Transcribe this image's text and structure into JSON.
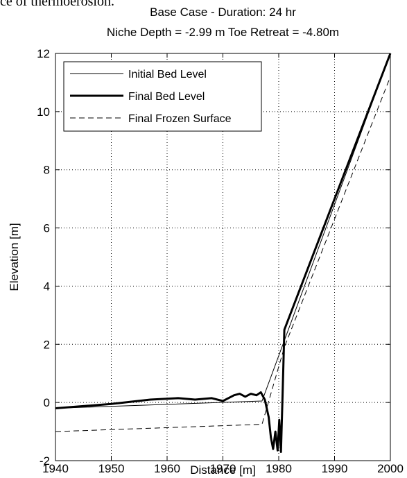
{
  "page": {
    "clipped_text": "ce of thermoerosion."
  },
  "chart_data": {
    "type": "line",
    "title": [
      "Base Case - Duration: 24 hr",
      "Niche Depth = -2.99 m  Toe Retreat = -4.80m"
    ],
    "xlabel": "Distance [m]",
    "ylabel": "Elevation [m]",
    "xlim": [
      1940,
      2000
    ],
    "ylim": [
      -2,
      12
    ],
    "xticks": [
      1940,
      1950,
      1960,
      1970,
      1980,
      1990,
      2000
    ],
    "yticks": [
      -2,
      0,
      2,
      4,
      6,
      8,
      10,
      12
    ],
    "grid": true,
    "legend_position": "top-left",
    "series": [
      {
        "name": "Initial Bed Level",
        "style": "thin-solid",
        "x": [
          1940,
          1977,
          2000
        ],
        "y": [
          -0.2,
          0.05,
          12
        ]
      },
      {
        "name": "Final Bed Level",
        "style": "thick-solid",
        "x": [
          1940,
          1950,
          1957,
          1962,
          1965,
          1968,
          1970,
          1972,
          1973,
          1974,
          1975,
          1976,
          1976.8,
          1977.5,
          1978.2,
          1978.6,
          1979,
          1979.4,
          1979.8,
          1980.1,
          1980.4,
          1980.7,
          1981,
          2000
        ],
        "y": [
          -0.2,
          -0.05,
          0.1,
          0.15,
          0.1,
          0.15,
          0.05,
          0.25,
          0.3,
          0.2,
          0.3,
          0.25,
          0.35,
          0.1,
          -0.5,
          -1.2,
          -1.6,
          -1.0,
          -1.65,
          -0.6,
          -1.7,
          0.3,
          2.5,
          12
        ]
      },
      {
        "name": "Final Frozen Surface",
        "style": "dashed",
        "x": [
          1940,
          1977,
          1981,
          2000
        ],
        "y": [
          -1.0,
          -0.75,
          1.9,
          11.2
        ]
      }
    ]
  }
}
